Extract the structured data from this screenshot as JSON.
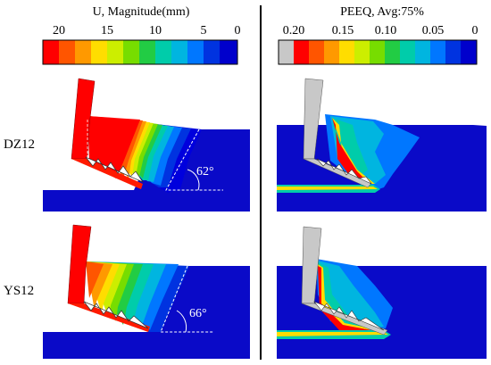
{
  "left_legend": {
    "title": "U, Magnitude(mm)",
    "ticks": [
      "20",
      "15",
      "10",
      "5",
      "0"
    ]
  },
  "right_legend": {
    "title": "PEEQ, Avg:75%",
    "ticks": [
      "0.20",
      "0.15",
      "0.10",
      "0.05",
      "0"
    ]
  },
  "colors": {
    "contour_scale": [
      "#ff0000",
      "#ff5500",
      "#ff9900",
      "#ffdd00",
      "#ccee00",
      "#77dd00",
      "#22cc44",
      "#00ccaa",
      "#00b5e0",
      "#0077ff",
      "#0033e0",
      "#0000cc"
    ],
    "peeq_overflow": "#c8c8c8",
    "background": "#0a0ac8"
  },
  "panels": {
    "row1_label": "DZ12",
    "row2_label": "YS12",
    "row1_angle": "62°",
    "row2_angle": "66°"
  }
}
